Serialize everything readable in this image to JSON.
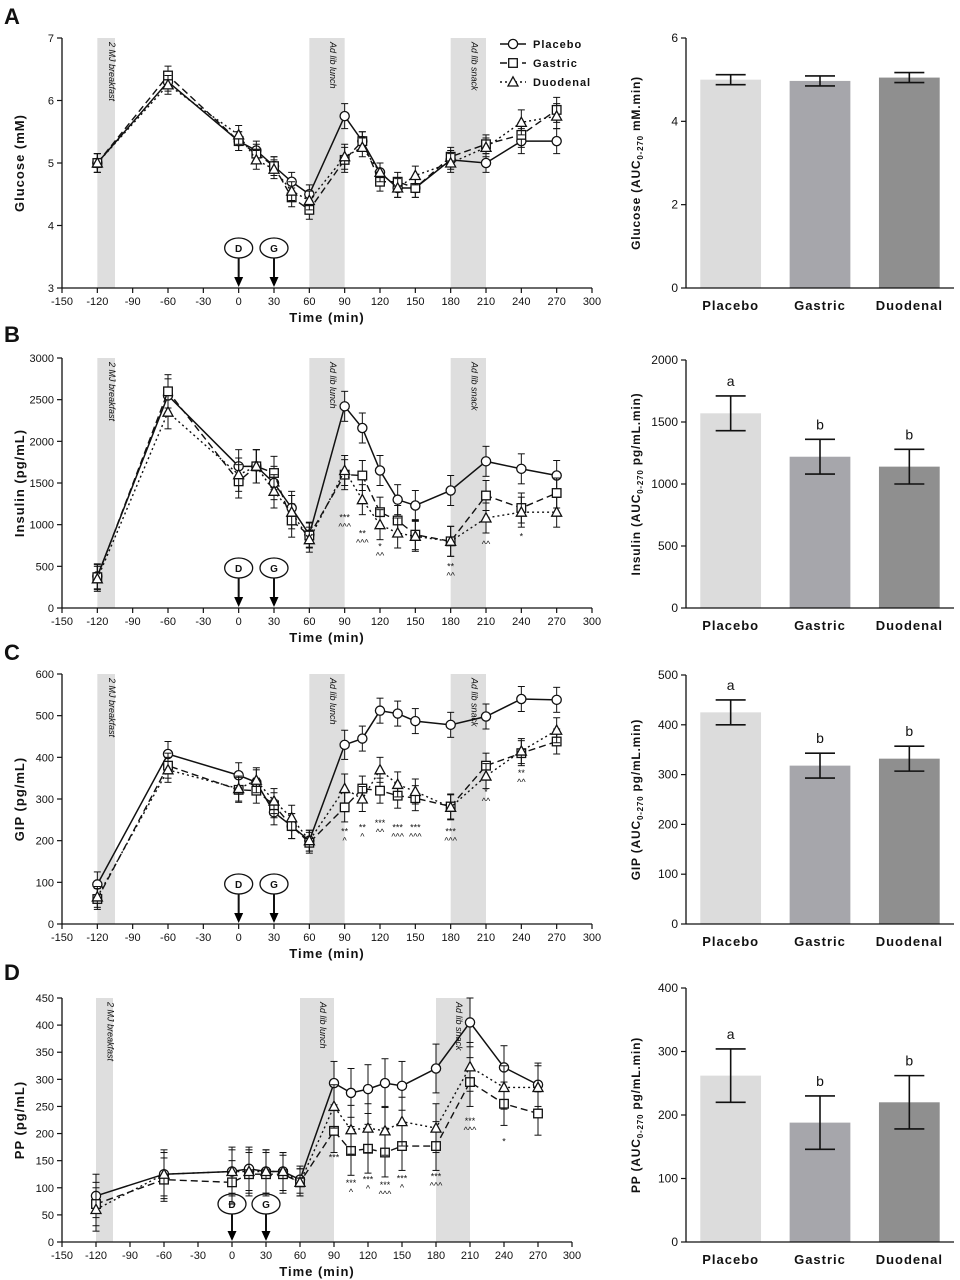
{
  "panels": [
    {
      "letter": "A"
    },
    {
      "letter": "B"
    },
    {
      "letter": "C"
    },
    {
      "letter": "D"
    }
  ],
  "legend": [
    "Placebo",
    "Gastric",
    "Duodenal"
  ],
  "dosing": {
    "duodenal_marker": "D",
    "gastric_marker": "G"
  },
  "colors": {
    "placebo_bar": "#dcdcdc",
    "gastric_bar": "#a6a6ab",
    "duodenal_bar": "#8f8f8f",
    "shade": "#dedede",
    "ink": "#111111"
  },
  "chart_data": [
    {
      "type": "line",
      "panel": "A",
      "xlabel": "Time (min)",
      "ylabel": "Glucose (mM)",
      "xlim": [
        -150,
        300
      ],
      "ylim": [
        3,
        7
      ],
      "xticks": [
        -150,
        -120,
        -90,
        -60,
        -30,
        0,
        30,
        60,
        90,
        120,
        150,
        180,
        210,
        240,
        270,
        300
      ],
      "yticks": [
        3,
        4,
        5,
        6,
        7
      ],
      "shaded": [
        {
          "from": -120,
          "to": -105,
          "label": "2 MJ breakfast"
        },
        {
          "from": 60,
          "to": 90,
          "label": "Ad lib lunch"
        },
        {
          "from": 180,
          "to": 210,
          "label": "Ad lib snack"
        }
      ],
      "x": [
        -120,
        -60,
        0,
        15,
        30,
        45,
        60,
        90,
        105,
        120,
        135,
        150,
        180,
        210,
        240,
        270
      ],
      "series": [
        {
          "name": "Placebo",
          "values": [
            5.0,
            6.3,
            5.35,
            5.2,
            4.95,
            4.7,
            4.5,
            5.75,
            5.35,
            4.85,
            4.6,
            4.6,
            5.05,
            5.0,
            5.35,
            5.35
          ],
          "err": [
            0.15,
            0.15,
            0.15,
            0.15,
            0.15,
            0.15,
            0.15,
            0.2,
            0.15,
            0.15,
            0.15,
            0.15,
            0.15,
            0.15,
            0.2,
            0.2
          ]
        },
        {
          "name": "Gastric",
          "values": [
            5.0,
            6.4,
            5.35,
            5.15,
            4.95,
            4.45,
            4.25,
            5.05,
            5.35,
            4.7,
            4.7,
            4.6,
            5.1,
            5.3,
            5.45,
            5.85
          ],
          "err": [
            0.15,
            0.15,
            0.15,
            0.15,
            0.15,
            0.15,
            0.15,
            0.2,
            0.15,
            0.15,
            0.15,
            0.15,
            0.15,
            0.15,
            0.2,
            0.2
          ]
        },
        {
          "name": "Duodenal",
          "values": [
            5.0,
            6.25,
            5.45,
            5.05,
            4.9,
            4.55,
            4.4,
            5.1,
            5.25,
            4.85,
            4.6,
            4.8,
            5.0,
            5.25,
            5.65,
            5.75
          ],
          "err": [
            0.15,
            0.15,
            0.15,
            0.15,
            0.15,
            0.15,
            0.15,
            0.2,
            0.15,
            0.15,
            0.15,
            0.15,
            0.15,
            0.15,
            0.2,
            0.2
          ]
        }
      ],
      "annotations": []
    },
    {
      "type": "bar",
      "panel": "A",
      "ylabel": "Glucose (AUC0-270 mM.min)",
      "ylabel_main": "Glucose (AUC",
      "ylabel_sub": "0-270",
      "ylabel_rest": " mM.min)",
      "categories": [
        "Placebo",
        "Gastric",
        "Duodenal"
      ],
      "values": [
        5.0,
        4.97,
        5.05
      ],
      "err": [
        0.12,
        0.12,
        0.12
      ],
      "ylim": [
        0,
        6
      ],
      "yticks": [
        0,
        2,
        4,
        6
      ],
      "letters": [
        "",
        "",
        ""
      ]
    },
    {
      "type": "line",
      "panel": "B",
      "xlabel": "Time (min)",
      "ylabel": "Insulin (pg/mL)",
      "xlim": [
        -150,
        300
      ],
      "ylim": [
        0,
        3000
      ],
      "xticks": [
        -150,
        -120,
        -90,
        -60,
        -30,
        0,
        30,
        60,
        90,
        120,
        150,
        180,
        210,
        240,
        270,
        300
      ],
      "yticks": [
        0,
        500,
        1000,
        1500,
        2000,
        2500,
        3000
      ],
      "shaded": [
        {
          "from": -120,
          "to": -105,
          "label": "2 MJ breakfast"
        },
        {
          "from": 60,
          "to": 90,
          "label": "Ad lib lunch"
        },
        {
          "from": 180,
          "to": 210,
          "label": "Ad lib snack"
        }
      ],
      "x": [
        -120,
        -60,
        0,
        15,
        30,
        45,
        60,
        90,
        105,
        120,
        135,
        150,
        180,
        210,
        240,
        270
      ],
      "series": [
        {
          "name": "Placebo",
          "values": [
            380,
            2550,
            1700,
            1700,
            1500,
            1200,
            880,
            2420,
            2160,
            1650,
            1300,
            1230,
            1410,
            1760,
            1670,
            1590
          ],
          "err": [
            150,
            200,
            200,
            200,
            200,
            200,
            150,
            180,
            180,
            180,
            180,
            180,
            180,
            180,
            180,
            180
          ]
        },
        {
          "name": "Gastric",
          "values": [
            370,
            2600,
            1520,
            1700,
            1620,
            1050,
            870,
            1600,
            1590,
            1150,
            1050,
            880,
            800,
            1350,
            1200,
            1380
          ],
          "err": [
            150,
            200,
            200,
            200,
            200,
            200,
            150,
            180,
            180,
            180,
            180,
            180,
            180,
            180,
            180,
            180
          ]
        },
        {
          "name": "Duodenal",
          "values": [
            350,
            2350,
            1600,
            1700,
            1400,
            1150,
            820,
            1650,
            1300,
            1000,
            900,
            860,
            800,
            1080,
            1150,
            1150
          ],
          "err": [
            150,
            200,
            200,
            200,
            200,
            200,
            150,
            180,
            180,
            180,
            180,
            180,
            180,
            180,
            180,
            180
          ]
        }
      ],
      "annotations": [
        {
          "x": 90,
          "value": 1050,
          "lines": [
            "***",
            "^^^"
          ]
        },
        {
          "x": 105,
          "value": 860,
          "lines": [
            "**",
            "^^^"
          ]
        },
        {
          "x": 120,
          "value": 700,
          "lines": [
            "*",
            "^^"
          ]
        },
        {
          "x": 180,
          "value": 460,
          "lines": [
            "**",
            "^^"
          ]
        },
        {
          "x": 210,
          "value": 730,
          "lines": [
            "^^"
          ]
        },
        {
          "x": 240,
          "value": 820,
          "lines": [
            "*"
          ]
        }
      ]
    },
    {
      "type": "bar",
      "panel": "B",
      "ylabel": "Insulin (AUC0-270 pg/mL.min)",
      "ylabel_main": "Insulin (AUC",
      "ylabel_sub": "0-270",
      "ylabel_rest": " pg/mL.min)",
      "categories": [
        "Placebo",
        "Gastric",
        "Duodenal"
      ],
      "values": [
        1570,
        1220,
        1140
      ],
      "err": [
        140,
        140,
        140
      ],
      "ylim": [
        0,
        2000
      ],
      "yticks": [
        0,
        500,
        1000,
        1500,
        2000
      ],
      "letters": [
        "a",
        "b",
        "b"
      ]
    },
    {
      "type": "line",
      "panel": "C",
      "xlabel": "Time (min)",
      "ylabel": "GIP (pg/mL)",
      "xlim": [
        -150,
        300
      ],
      "ylim": [
        0,
        600
      ],
      "xticks": [
        -150,
        -120,
        -90,
        -60,
        -30,
        0,
        30,
        60,
        90,
        120,
        150,
        180,
        210,
        240,
        270,
        300
      ],
      "yticks": [
        0,
        100,
        200,
        300,
        400,
        500,
        600
      ],
      "shaded": [
        {
          "from": -120,
          "to": -105,
          "label": "2 MJ breakfast"
        },
        {
          "from": 60,
          "to": 90,
          "label": "Ad lib lunch"
        },
        {
          "from": 180,
          "to": 210,
          "label": "Ad lib snack"
        }
      ],
      "x": [
        -120,
        -60,
        0,
        15,
        30,
        45,
        60,
        90,
        105,
        120,
        135,
        150,
        180,
        210,
        240,
        270
      ],
      "series": [
        {
          "name": "Placebo",
          "values": [
            95,
            408,
            357,
            340,
            268,
            235,
            200,
            430,
            445,
            512,
            505,
            487,
            478,
            498,
            540,
            538
          ],
          "err": [
            30,
            30,
            30,
            30,
            30,
            30,
            25,
            35,
            30,
            30,
            30,
            30,
            30,
            30,
            30,
            30
          ]
        },
        {
          "name": "Gastric",
          "values": [
            60,
            380,
            322,
            320,
            285,
            235,
            195,
            280,
            325,
            320,
            308,
            302,
            282,
            380,
            410,
            438
          ],
          "err": [
            25,
            30,
            30,
            30,
            30,
            30,
            25,
            35,
            30,
            30,
            30,
            30,
            30,
            30,
            30,
            30
          ]
        },
        {
          "name": "Duodenal",
          "values": [
            65,
            370,
            325,
            345,
            295,
            255,
            200,
            325,
            300,
            370,
            335,
            318,
            280,
            355,
            415,
            465
          ],
          "err": [
            25,
            30,
            30,
            30,
            30,
            30,
            25,
            35,
            30,
            30,
            30,
            30,
            30,
            30,
            30,
            30
          ]
        }
      ],
      "annotations": [
        {
          "x": 90,
          "value": 215,
          "lines": [
            "**",
            "^"
          ]
        },
        {
          "x": 105,
          "value": 225,
          "lines": [
            "**",
            "^"
          ]
        },
        {
          "x": 120,
          "value": 235,
          "lines": [
            "***",
            "^^"
          ]
        },
        {
          "x": 135,
          "value": 225,
          "lines": [
            "***",
            "^^^"
          ]
        },
        {
          "x": 150,
          "value": 225,
          "lines": [
            "***",
            "^^^"
          ]
        },
        {
          "x": 180,
          "value": 215,
          "lines": [
            "***",
            "^^^"
          ]
        },
        {
          "x": 210,
          "value": 310,
          "lines": [
            "*",
            "^^"
          ]
        },
        {
          "x": 240,
          "value": 355,
          "lines": [
            "**",
            "^^"
          ]
        }
      ]
    },
    {
      "type": "bar",
      "panel": "C",
      "ylabel": "GIP (AUC0-270 pg/mL.min)",
      "ylabel_main": "GIP (AUC",
      "ylabel_sub": "0-270",
      "ylabel_rest": " pg/mL.min)",
      "categories": [
        "Placebo",
        "Gastric",
        "Duodenal"
      ],
      "values": [
        425,
        318,
        332
      ],
      "err": [
        25,
        25,
        25
      ],
      "ylim": [
        0,
        500
      ],
      "yticks": [
        0,
        100,
        200,
        300,
        400,
        500
      ],
      "letters": [
        "a",
        "b",
        "b"
      ]
    },
    {
      "type": "line",
      "panel": "D",
      "xlabel": "Time (min)",
      "ylabel": "PP (pg/mL)",
      "xlim": [
        -150,
        300
      ],
      "ylim": [
        0,
        450
      ],
      "xticks": [
        -150,
        -120,
        -90,
        -60,
        -30,
        0,
        30,
        60,
        90,
        120,
        150,
        180,
        210,
        240,
        270,
        300
      ],
      "yticks": [
        0,
        50,
        100,
        150,
        200,
        250,
        300,
        350,
        400,
        450
      ],
      "shaded": [
        {
          "from": -120,
          "to": -105,
          "label": "2 MJ breakfast"
        },
        {
          "from": 60,
          "to": 90,
          "label": "Ad lib lunch"
        },
        {
          "from": 180,
          "to": 210,
          "label": "Ad lib snack"
        }
      ],
      "x": [
        -120,
        -60,
        0,
        15,
        30,
        45,
        60,
        90,
        105,
        120,
        135,
        150,
        180,
        210,
        240,
        270
      ],
      "series": [
        {
          "name": "Placebo",
          "values": [
            85,
            125,
            130,
            135,
            130,
            130,
            115,
            293,
            275,
            282,
            293,
            288,
            320,
            405,
            322,
            290
          ],
          "err": [
            40,
            45,
            45,
            40,
            40,
            35,
            25,
            40,
            45,
            45,
            45,
            45,
            45,
            45,
            40,
            40
          ]
        },
        {
          "name": "Gastric",
          "values": [
            70,
            115,
            110,
            125,
            125,
            125,
            110,
            205,
            168,
            172,
            165,
            177,
            177,
            295,
            255,
            237
          ],
          "err": [
            40,
            40,
            40,
            40,
            40,
            35,
            25,
            40,
            45,
            45,
            45,
            45,
            45,
            45,
            40,
            40
          ]
        },
        {
          "name": "Duodenal",
          "values": [
            60,
            125,
            130,
            130,
            130,
            130,
            110,
            250,
            207,
            210,
            205,
            222,
            210,
            323,
            285,
            285
          ],
          "err": [
            40,
            40,
            40,
            40,
            40,
            35,
            25,
            40,
            45,
            45,
            45,
            45,
            45,
            45,
            40,
            40
          ]
        }
      ],
      "annotations": [
        {
          "x": 90,
          "value": 150,
          "lines": [
            "***"
          ]
        },
        {
          "x": 105,
          "value": 103,
          "lines": [
            "***",
            "^"
          ]
        },
        {
          "x": 120,
          "value": 110,
          "lines": [
            "***",
            "^"
          ]
        },
        {
          "x": 135,
          "value": 100,
          "lines": [
            "***",
            "^^^"
          ]
        },
        {
          "x": 150,
          "value": 112,
          "lines": [
            "***",
            "^"
          ]
        },
        {
          "x": 180,
          "value": 115,
          "lines": [
            "***",
            "^^^"
          ]
        },
        {
          "x": 210,
          "value": 218,
          "lines": [
            "***",
            "^^^"
          ]
        },
        {
          "x": 240,
          "value": 180,
          "lines": [
            "*"
          ]
        }
      ]
    },
    {
      "type": "bar",
      "panel": "D",
      "ylabel": "PP (AUC0-270 pg/mL.min)",
      "ylabel_main": "PP (AUC",
      "ylabel_sub": "0-270",
      "ylabel_rest": " pg/mL.min)",
      "categories": [
        "Placebo",
        "Gastric",
        "Duodenal"
      ],
      "values": [
        262,
        188,
        220
      ],
      "err": [
        42,
        42,
        42
      ],
      "ylim": [
        0,
        400
      ],
      "yticks": [
        0,
        100,
        200,
        300,
        400
      ],
      "letters": [
        "a",
        "b",
        "b"
      ]
    }
  ]
}
